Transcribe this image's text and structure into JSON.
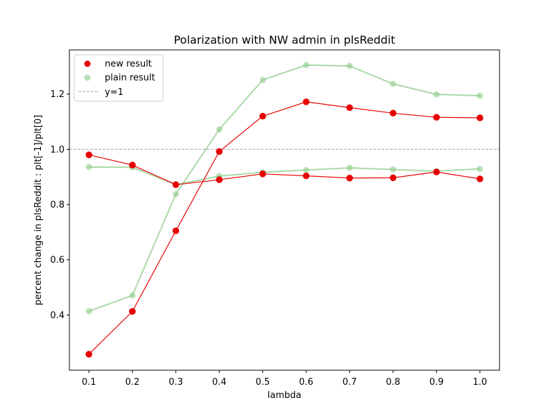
{
  "chart_data": {
    "type": "line",
    "title": "Polarization with NW admin in plsReddit",
    "xlabel": "lambda",
    "ylabel": "percent change in plsReddit : plt[-1]/plt[0]",
    "x": [
      0.1,
      0.2,
      0.3,
      0.4,
      0.5,
      0.6,
      0.7,
      0.8,
      0.9,
      1.0
    ],
    "xticks": [
      "0.1",
      "0.2",
      "0.3",
      "0.4",
      "0.5",
      "0.6",
      "0.7",
      "0.8",
      "0.9",
      "1.0"
    ],
    "yticks": [
      "0.4",
      "0.6",
      "0.8",
      "1.0",
      "1.2"
    ],
    "xlim": [
      0.055,
      1.045
    ],
    "ylim": [
      0.2,
      1.36
    ],
    "grid": false,
    "legend_position": "top-left",
    "reference_line": {
      "y": 1.0,
      "label": "y=1",
      "color": "#a6a6a6"
    },
    "series": [
      {
        "name": "new result",
        "color": "#e80000",
        "lines": [
          [
            0.258,
            0.413,
            0.705,
            0.992,
            1.12,
            1.172,
            1.151,
            1.131,
            1.116,
            1.114
          ],
          [
            0.98,
            0.943,
            0.872,
            0.89,
            0.911,
            0.904,
            0.896,
            0.897,
            0.918,
            0.893
          ]
        ]
      },
      {
        "name": "plain result",
        "color": "#8fcc8a",
        "lines": [
          [
            0.414,
            0.471,
            0.838,
            1.072,
            1.251,
            1.305,
            1.302,
            1.237,
            1.199,
            1.194
          ],
          [
            0.936,
            0.935,
            0.872,
            0.903,
            0.917,
            0.925,
            0.933,
            0.927,
            0.921,
            0.929
          ]
        ]
      }
    ]
  }
}
